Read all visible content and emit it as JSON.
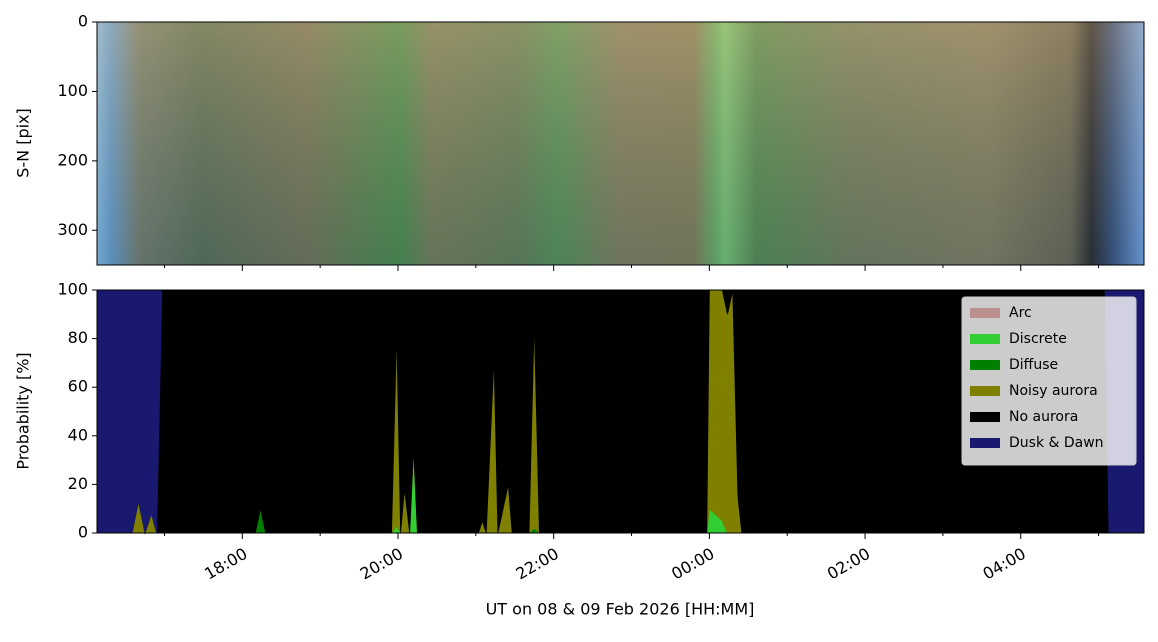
{
  "chart_data": [
    {
      "type": "image",
      "ylabel": "S-N [pix]",
      "ylim": [
        350,
        0
      ],
      "yticks": [
        0,
        100,
        200,
        300
      ]
    },
    {
      "type": "stacked_area",
      "ylabel": "Probability [%]",
      "xlabel": "UT on 08 & 09 Feb 2026 [HH:MM]",
      "xlim": [
        "2026-02-08T16:08",
        "2026-02-09T05:35"
      ],
      "xticks": [
        {
          "value": "2026-02-08T18:00",
          "label": "18:00"
        },
        {
          "value": "2026-02-08T20:00",
          "label": "20:00"
        },
        {
          "value": "2026-02-08T22:00",
          "label": "22:00"
        },
        {
          "value": "2026-02-09T00:00",
          "label": "00:00"
        },
        {
          "value": "2026-02-09T02:00",
          "label": "02:00"
        },
        {
          "value": "2026-02-09T04:00",
          "label": "04:00"
        }
      ],
      "xminorticks": [
        "2026-02-08T17:00",
        "2026-02-08T19:00",
        "2026-02-08T21:00",
        "2026-02-08T23:00",
        "2026-02-09T01:00",
        "2026-02-09T03:00",
        "2026-02-09T05:00"
      ],
      "ylim": [
        0,
        100
      ],
      "yticks": [
        0,
        20,
        40,
        60,
        80,
        100
      ],
      "legend": "upper right",
      "x": [
        "2026-02-08T16:08",
        "2026-02-08T16:35",
        "2026-02-08T16:40",
        "2026-02-08T16:45",
        "2026-02-08T16:50",
        "2026-02-08T16:54",
        "2026-02-08T16:58",
        "2026-02-08T18:10",
        "2026-02-08T18:14",
        "2026-02-08T18:18",
        "2026-02-08T19:55",
        "2026-02-08T19:59",
        "2026-02-08T20:02",
        "2026-02-08T20:05",
        "2026-02-08T20:09",
        "2026-02-08T20:12",
        "2026-02-08T20:15",
        "2026-02-08T21:02",
        "2026-02-08T21:05",
        "2026-02-08T21:08",
        "2026-02-08T21:14",
        "2026-02-08T21:17",
        "2026-02-08T21:25",
        "2026-02-08T21:28",
        "2026-02-08T21:41",
        "2026-02-08T21:45",
        "2026-02-08T21:49",
        "2026-02-08T23:58",
        "2026-02-09T00:00",
        "2026-02-09T00:10",
        "2026-02-09T00:14",
        "2026-02-09T00:18",
        "2026-02-09T00:22",
        "2026-02-09T00:25",
        "2026-02-09T05:05",
        "2026-02-09T05:08",
        "2026-02-09T05:35"
      ],
      "series": [
        {
          "name": "Arc",
          "color": "#bc8f8f",
          "values": [
            0,
            0,
            0,
            0,
            0,
            0,
            0,
            0,
            0,
            0,
            0,
            0,
            0,
            0,
            0,
            0,
            0,
            0,
            0,
            0,
            0,
            0,
            0,
            0,
            0,
            0,
            0,
            0,
            0,
            0,
            0,
            0,
            0,
            0,
            0,
            0,
            0
          ]
        },
        {
          "name": "Discrete",
          "color": "#32cd32",
          "values": [
            0,
            0,
            0,
            0,
            0,
            0,
            0,
            0,
            0,
            0,
            0,
            3,
            0,
            0,
            0,
            35,
            0,
            0,
            0,
            0,
            0,
            0,
            0,
            0,
            0,
            0,
            0,
            0,
            10,
            5,
            0,
            0,
            0,
            0,
            0,
            0,
            0
          ]
        },
        {
          "name": "Diffuse",
          "color": "#008000",
          "values": [
            0,
            0,
            0,
            0,
            0,
            0,
            0,
            0,
            10,
            0,
            0,
            0,
            0,
            0,
            0,
            0,
            0,
            0,
            0,
            0,
            0,
            0,
            0,
            0,
            0,
            2,
            0,
            0,
            0,
            0,
            0,
            0,
            0,
            0,
            0,
            0,
            0
          ]
        },
        {
          "name": "Noisy aurora",
          "color": "#808000",
          "values": [
            0,
            0,
            13,
            0,
            8,
            0,
            0,
            0,
            0,
            0,
            0,
            80,
            0,
            18,
            0,
            0,
            0,
            0,
            5,
            0,
            72,
            0,
            20,
            0,
            0,
            85,
            0,
            0,
            90,
            95,
            90,
            100,
            15,
            0,
            0,
            0,
            0
          ]
        },
        {
          "name": "No aurora",
          "color": "#000000",
          "values": [
            0,
            0,
            0,
            0,
            0,
            0,
            100,
            100,
            90,
            100,
            100,
            17,
            100,
            82,
            100,
            65,
            100,
            100,
            95,
            100,
            28,
            100,
            80,
            100,
            100,
            13,
            100,
            100,
            0,
            0,
            10,
            0,
            85,
            100,
            100,
            0,
            0
          ]
        },
        {
          "name": "Dusk & Dawn",
          "color": "#191970",
          "values": [
            100,
            100,
            87,
            100,
            92,
            100,
            0,
            0,
            0,
            0,
            0,
            0,
            0,
            0,
            0,
            0,
            0,
            0,
            0,
            0,
            0,
            0,
            0,
            0,
            0,
            0,
            0,
            0,
            0,
            0,
            0,
            0,
            0,
            0,
            0,
            100,
            100
          ]
        }
      ]
    }
  ]
}
